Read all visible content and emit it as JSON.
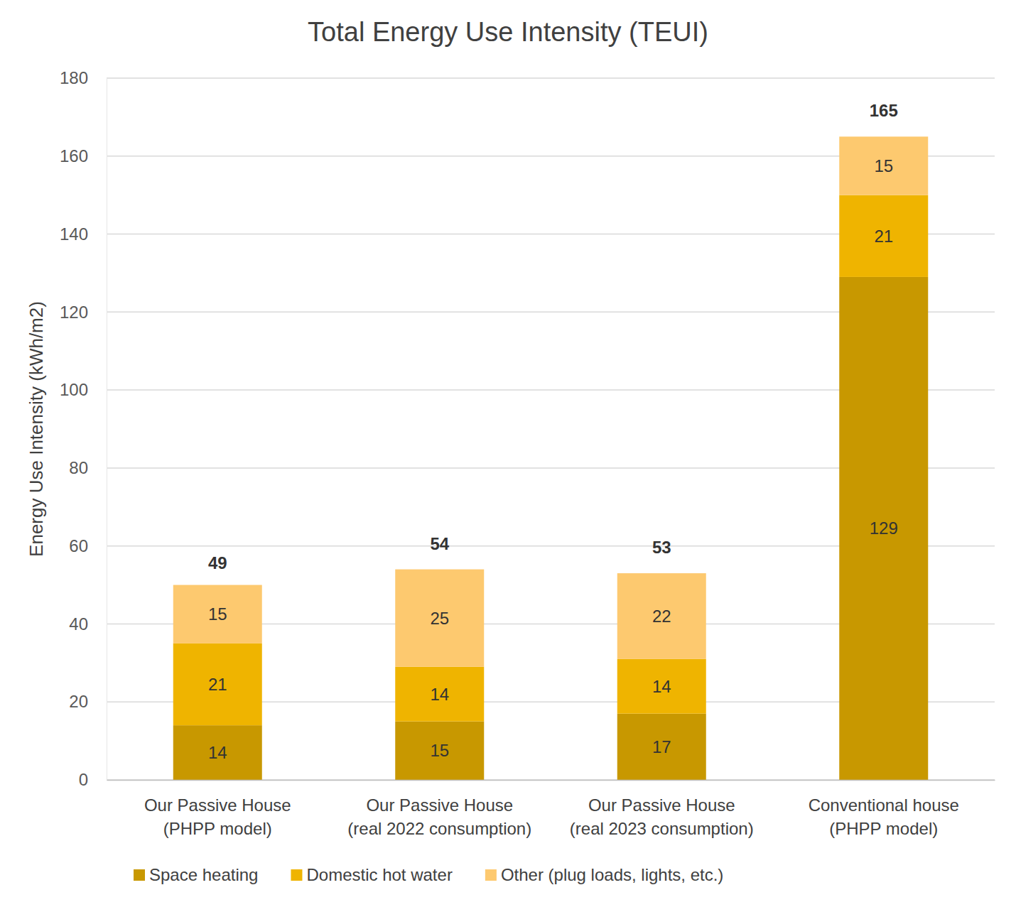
{
  "chart_data": {
    "type": "bar",
    "title": "Total Energy Use Intensity (TEUI)",
    "y_label": "Energy Use Intensity (kWh/m2)",
    "categories": [
      "Our Passive House\n(PHPP model)",
      "Our Passive House\n(real 2022 consumption)",
      "Our Passive House\n(real 2023 consumption)",
      "Conventional house\n(PHPP model)"
    ],
    "series": [
      {
        "name": "Space heating",
        "color": "#c89800",
        "values": [
          14,
          15,
          17,
          129
        ]
      },
      {
        "name": "Domestic hot water",
        "color": "#efb400",
        "values": [
          21,
          14,
          14,
          21
        ]
      },
      {
        "name": "Other (plug loads, lights, etc.)",
        "color": "#fdc96f",
        "values": [
          15,
          25,
          22,
          15
        ]
      }
    ],
    "totals": [
      49,
      54,
      53,
      165
    ],
    "ylim": [
      0,
      180
    ],
    "yticks": [
      0,
      20,
      40,
      60,
      80,
      100,
      120,
      140,
      160,
      180
    ],
    "stacked": true,
    "data_labels": true,
    "grid": true,
    "legend": "bottom"
  }
}
